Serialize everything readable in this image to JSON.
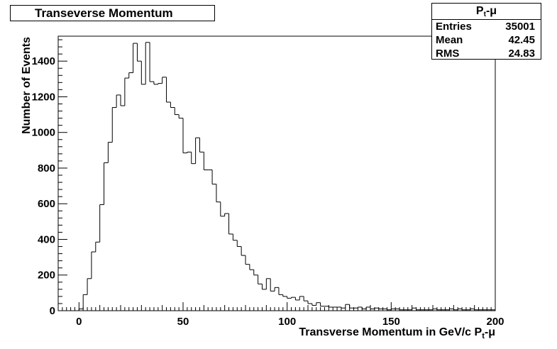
{
  "chart_data": {
    "type": "histogram",
    "title": "Transeverse Momentum",
    "xlabel": {
      "pre": "Transverse Momentum in GeV/c P",
      "sub": "t",
      "post": "-μ"
    },
    "ylabel": "Number of Events",
    "xlim": [
      -10,
      200
    ],
    "ylim": [
      0,
      1540
    ],
    "x_ticks": [
      0,
      50,
      100,
      150,
      200
    ],
    "y_ticks": [
      0,
      200,
      400,
      600,
      800,
      1000,
      1200,
      1400
    ],
    "bin_width": 2,
    "bin_start": -10,
    "counts": [
      0,
      0,
      0,
      0,
      0,
      10,
      90,
      180,
      330,
      385,
      595,
      830,
      945,
      1140,
      1210,
      1150,
      1305,
      1335,
      1500,
      1400,
      1270,
      1505,
      1285,
      1270,
      1275,
      1310,
      1170,
      1140,
      1100,
      1080,
      885,
      890,
      825,
      970,
      890,
      790,
      790,
      710,
      610,
      530,
      545,
      430,
      395,
      360,
      310,
      260,
      230,
      200,
      150,
      120,
      180,
      110,
      130,
      90,
      80,
      70,
      75,
      60,
      80,
      55,
      40,
      30,
      45,
      25,
      25,
      20,
      20,
      20,
      15,
      35,
      15,
      15,
      20,
      10,
      20,
      10,
      15,
      10,
      10,
      5,
      10,
      10,
      5,
      5,
      5,
      15,
      5,
      5,
      5,
      5,
      10,
      5,
      5,
      5,
      10,
      5,
      10,
      5,
      5,
      10,
      5,
      5,
      5,
      5,
      5
    ],
    "stats": {
      "name_pre": "P",
      "name_sub": "t",
      "name_post": "-μ",
      "rows": [
        {
          "label": "Entries",
          "value": "35001"
        },
        {
          "label": "Mean",
          "value": "42.45"
        },
        {
          "label": "RMS",
          "value": "24.83"
        }
      ]
    }
  }
}
